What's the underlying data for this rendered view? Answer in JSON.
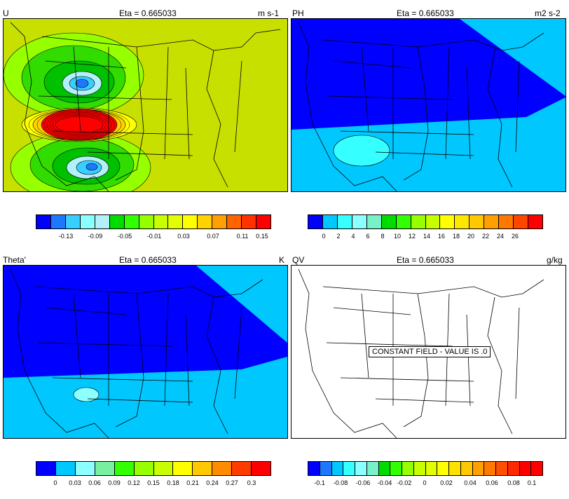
{
  "panels": [
    {
      "id": "u",
      "field_label": "U",
      "level_label": "Eta = 0.665033",
      "units_label": "m s-1",
      "colorbar": {
        "colors": [
          "#0000ff",
          "#1e78ff",
          "#36cfff",
          "#8cffff",
          "#b4f0fa",
          "#00dc00",
          "#32ff00",
          "#96ff00",
          "#c8ff00",
          "#e1ff00",
          "#ffff00",
          "#ffd200",
          "#ffa000",
          "#ff6400",
          "#ff3200",
          "#ff0000"
        ],
        "labels": [
          "-0.13",
          "-0.09",
          "-0.05",
          "-0.01",
          "0.03",
          "0.07",
          "0.11",
          "0.15"
        ]
      }
    },
    {
      "id": "ph",
      "field_label": "PH",
      "level_label": "Eta = 0.665033",
      "units_label": "m2 s-2",
      "colorbar": {
        "colors": [
          "#0000ff",
          "#00c8ff",
          "#36ffff",
          "#8cffff",
          "#78f0c8",
          "#00dc00",
          "#32ff00",
          "#96ff00",
          "#c8ff00",
          "#ffff00",
          "#ffe600",
          "#ffc800",
          "#ffa000",
          "#ff7800",
          "#ff4600",
          "#ff0000"
        ],
        "labels": [
          "0",
          "2",
          "4",
          "6",
          "8",
          "10",
          "12",
          "14",
          "16",
          "18",
          "20",
          "22",
          "24",
          "26"
        ]
      }
    },
    {
      "id": "theta",
      "field_label": "Theta'",
      "level_label": "Eta = 0.665033",
      "units_label": "K",
      "colorbar": {
        "colors": [
          "#0000ff",
          "#00c8ff",
          "#8cffff",
          "#78f0a0",
          "#32ff00",
          "#96ff00",
          "#c8ff00",
          "#ffff00",
          "#ffc800",
          "#ff8c00",
          "#ff3c00",
          "#ff0000"
        ],
        "labels": [
          "0",
          "0.03",
          "0.06",
          "0.09",
          "0.12",
          "0.15",
          "0.18",
          "0.21",
          "0.24",
          "0.27",
          "0.3"
        ]
      }
    },
    {
      "id": "qv",
      "field_label": "QV",
      "level_label": "Eta = 0.665033",
      "units_label": "g/kg",
      "constant_message": "CONSTANT FIELD - VALUE IS .0",
      "colorbar": {
        "colors": [
          "#0000ff",
          "#1e78ff",
          "#00c8ff",
          "#36ffff",
          "#8cffff",
          "#78f0c8",
          "#00dc00",
          "#32ff00",
          "#96ff00",
          "#c8ff00",
          "#e1ff00",
          "#ffff00",
          "#ffe100",
          "#ffc800",
          "#ffa000",
          "#ff7800",
          "#ff5000",
          "#ff2800",
          "#ff0000",
          "#ff0000"
        ],
        "labels": [
          "-0.1",
          "-0.08",
          "-0.06",
          "-0.04",
          "-0.02",
          "0",
          "0.02",
          "0.04",
          "0.06",
          "0.08",
          "0.1"
        ]
      }
    }
  ]
}
